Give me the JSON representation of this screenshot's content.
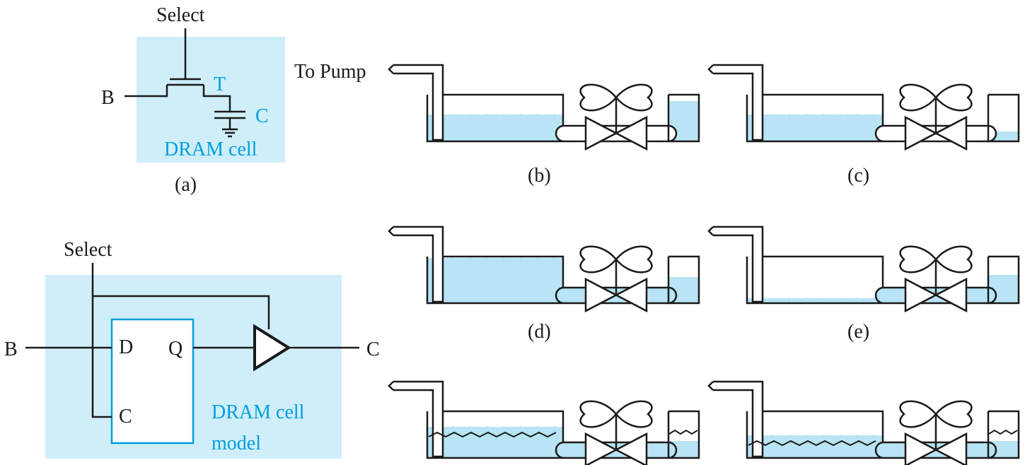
{
  "panel_a": {
    "select_label": "Select",
    "b_label": "B",
    "t_label": "T",
    "c_label": "C",
    "cell_label": "DRAM cell",
    "caption": "(a)"
  },
  "panel_model": {
    "select_label": "Select",
    "b_label": "B",
    "d_label": "D",
    "q_label": "Q",
    "c_in_label": "C",
    "c_out_label": "C",
    "model_label_line1": "DRAM cell",
    "model_label_line2": "model"
  },
  "pump_label": "To Pump",
  "captions": {
    "b": "(b)",
    "c": "(c)",
    "d": "(d)",
    "e": "(e)"
  },
  "colors": {
    "accent": "#00a0dc",
    "shade": "#cfeefa",
    "water": "#b8e4f5",
    "line": "#1a1a1a"
  }
}
